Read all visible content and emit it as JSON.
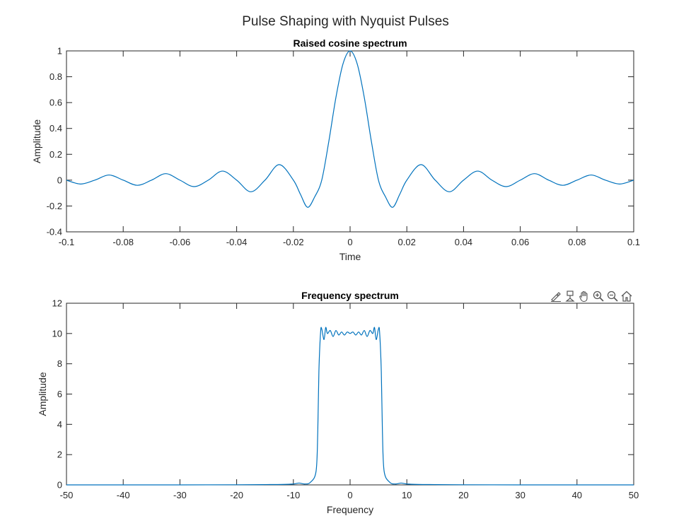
{
  "figure": {
    "suptitle": "Pulse Shaping with Nyquist Pulses"
  },
  "toolbar": {
    "icons": [
      "brush-edit-icon",
      "data-tip-icon",
      "pan-hand-icon",
      "zoom-in-icon",
      "zoom-out-icon",
      "home-icon"
    ]
  },
  "colors": {
    "line": "#0072BD",
    "axes": "#262626",
    "background": "#ffffff"
  },
  "chart_data": [
    {
      "type": "line",
      "title": "Raised cosine spectrum",
      "xlabel": "Time",
      "ylabel": "Amplitude",
      "xlim": [
        -0.1,
        0.1
      ],
      "ylim": [
        -0.4,
        1
      ],
      "xticks": [
        -0.1,
        -0.08,
        -0.06,
        -0.04,
        -0.02,
        0,
        0.02,
        0.04,
        0.06,
        0.08,
        0.1
      ],
      "xtick_labels": [
        "-0.1",
        "-0.08",
        "-0.06",
        "-0.04",
        "-0.02",
        "0",
        "0.02",
        "0.04",
        "0.06",
        "0.08",
        "0.1"
      ],
      "yticks": [
        -0.4,
        -0.2,
        0,
        0.2,
        0.4,
        0.6,
        0.8,
        1
      ],
      "ytick_labels": [
        "-0.4",
        "-0.2",
        "0",
        "0.2",
        "0.4",
        "0.6",
        "0.8",
        "1"
      ],
      "grid": false,
      "series": [
        {
          "x": [
            -0.1,
            -0.095,
            -0.09,
            -0.085,
            -0.08,
            -0.075,
            -0.07,
            -0.065,
            -0.06,
            -0.055,
            -0.05,
            -0.045,
            -0.04,
            -0.035,
            -0.03,
            -0.025,
            -0.02,
            -0.0175,
            -0.015,
            -0.0125,
            -0.01,
            -0.0075,
            -0.005,
            -0.0025,
            0,
            0.0025,
            0.005,
            0.0075,
            0.01,
            0.0125,
            0.015,
            0.0175,
            0.02,
            0.025,
            0.03,
            0.035,
            0.04,
            0.045,
            0.05,
            0.055,
            0.06,
            0.065,
            0.07,
            0.075,
            0.08,
            0.085,
            0.09,
            0.095,
            0.1
          ],
          "y": [
            0,
            -0.03,
            0,
            0.04,
            0,
            -0.04,
            0,
            0.05,
            0,
            -0.05,
            0,
            0.07,
            0,
            -0.09,
            0,
            0.12,
            0,
            -0.11,
            -0.21,
            -0.13,
            0,
            0.3,
            0.64,
            0.9,
            1,
            0.9,
            0.64,
            0.3,
            0,
            -0.13,
            -0.21,
            -0.11,
            0,
            0.12,
            0,
            -0.09,
            0,
            0.07,
            0,
            -0.05,
            0,
            0.05,
            0,
            -0.04,
            0,
            0.04,
            0,
            -0.03,
            0
          ]
        }
      ]
    },
    {
      "type": "line",
      "title": "Frequency spectrum",
      "xlabel": "Frequency",
      "ylabel": "Amplitude",
      "xlim": [
        -50,
        50
      ],
      "ylim": [
        0,
        12
      ],
      "xticks": [
        -50,
        -40,
        -30,
        -20,
        -10,
        0,
        10,
        20,
        30,
        40,
        50
      ],
      "xtick_labels": [
        "-50",
        "-40",
        "-30",
        "-20",
        "-10",
        "0",
        "10",
        "20",
        "30",
        "40",
        "50"
      ],
      "yticks": [
        0,
        2,
        4,
        6,
        8,
        10,
        12
      ],
      "ytick_labels": [
        "0",
        "2",
        "4",
        "6",
        "8",
        "10",
        "12"
      ],
      "grid": false,
      "series": [
        {
          "x": [
            -50,
            -30,
            -20,
            -15,
            -12,
            -10,
            -9,
            -8,
            -7,
            -6,
            -5.7,
            -5.5,
            -5.2,
            -5,
            -4.6,
            -4.3,
            -4,
            -3.5,
            -3,
            -2.5,
            -2,
            -1.5,
            -1,
            -0.5,
            0,
            0.5,
            1,
            1.5,
            2,
            2.5,
            3,
            3.5,
            4,
            4.3,
            4.6,
            5,
            5.2,
            5.5,
            5.7,
            6,
            7,
            8,
            9,
            10,
            12,
            15,
            20,
            30,
            50
          ],
          "y": [
            0,
            0,
            0.01,
            0.02,
            0.03,
            0.06,
            0.12,
            0.06,
            0.17,
            0.9,
            3.5,
            7.5,
            10.1,
            10.3,
            9.6,
            10.4,
            10.0,
            10.2,
            9.8,
            10.2,
            9.9,
            10.1,
            9.9,
            10.1,
            10.0,
            10.1,
            9.9,
            10.1,
            9.9,
            10.2,
            9.8,
            10.2,
            10.0,
            10.4,
            9.6,
            10.3,
            10.1,
            7.5,
            3.5,
            0.9,
            0.17,
            0.06,
            0.12,
            0.06,
            0.03,
            0.02,
            0.01,
            0,
            0
          ]
        }
      ]
    }
  ]
}
